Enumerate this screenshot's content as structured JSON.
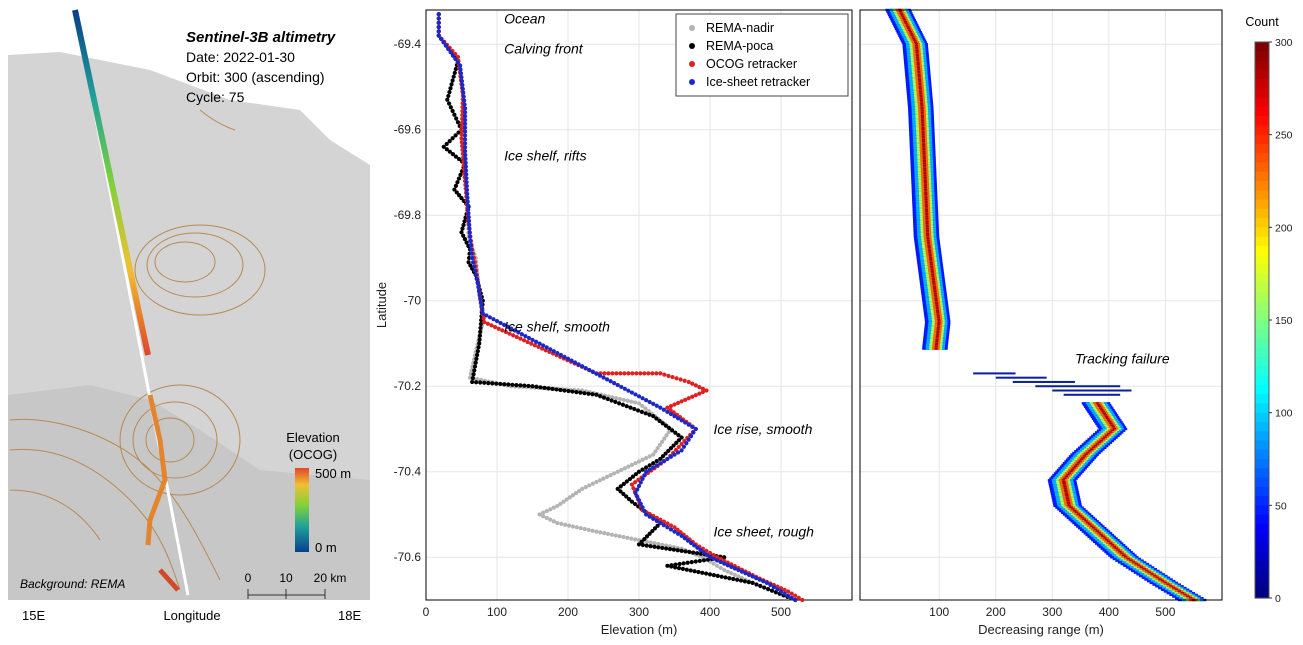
{
  "map": {
    "title": "Sentinel-3B altimetry",
    "info_lines": [
      "Date: 2022-01-30",
      "Orbit: 300 (ascending)",
      "Cycle: 75"
    ],
    "legend_title_1": "Elevation",
    "legend_title_2": "(OCOG)",
    "legend_max": "500 m",
    "legend_min": "0 m",
    "background_note": "Background: REMA",
    "scale_ticks": [
      "0",
      "10",
      "20 km"
    ],
    "x_ticks": [
      "15E",
      "18E"
    ],
    "x_label": "Longitude",
    "colors": {
      "low": "#0a3f8c",
      "mid": "#7fd13b",
      "high": "#e0462b",
      "ocean": "#ffffff",
      "ice": "#d9d9d9"
    }
  },
  "chart_data": [
    {
      "type": "scatter",
      "xlabel": "Elevation (m)",
      "ylabel": "Latitude",
      "xlim": [
        0,
        600
      ],
      "ylim": [
        -70.7,
        -69.32
      ],
      "x_ticks": [
        0,
        100,
        200,
        300,
        400,
        500
      ],
      "y_ticks": [
        -69.4,
        -69.6,
        -69.8,
        -70,
        -70.2,
        -70.4,
        -70.6
      ],
      "grid": true,
      "legend_position": "top-right",
      "series": [
        {
          "name": "REMA-nadir",
          "color": "#b4b4b4",
          "points": [
            [
              18,
              -69.33
            ],
            [
              18,
              -69.38
            ],
            [
              48,
              -69.45
            ],
            [
              55,
              -69.55
            ],
            [
              55,
              -69.65
            ],
            [
              58,
              -69.75
            ],
            [
              60,
              -69.85
            ],
            [
              70,
              -69.9
            ],
            [
              75,
              -69.98
            ],
            [
              80,
              -70.05
            ],
            [
              70,
              -70.12
            ],
            [
              62,
              -70.18
            ],
            [
              120,
              -70.2
            ],
            [
              220,
              -70.21
            ],
            [
              300,
              -70.24
            ],
            [
              345,
              -70.3
            ],
            [
              320,
              -70.36
            ],
            [
              270,
              -70.4
            ],
            [
              220,
              -70.44
            ],
            [
              185,
              -70.48
            ],
            [
              160,
              -70.5
            ],
            [
              185,
              -70.52
            ],
            [
              240,
              -70.54
            ],
            [
              300,
              -70.56
            ],
            [
              360,
              -70.58
            ],
            [
              390,
              -70.6
            ],
            [
              420,
              -70.63
            ],
            [
              460,
              -70.66
            ],
            [
              520,
              -70.7
            ]
          ]
        },
        {
          "name": "REMA-poca",
          "color": "#000000",
          "points": [
            [
              18,
              -69.33
            ],
            [
              18,
              -69.38
            ],
            [
              45,
              -69.44
            ],
            [
              30,
              -69.53
            ],
            [
              50,
              -69.6
            ],
            [
              25,
              -69.64
            ],
            [
              55,
              -69.68
            ],
            [
              40,
              -69.74
            ],
            [
              60,
              -69.78
            ],
            [
              50,
              -69.84
            ],
            [
              62,
              -69.88
            ],
            [
              60,
              -69.91
            ],
            [
              70,
              -69.94
            ],
            [
              80,
              -70.0
            ],
            [
              75,
              -70.1
            ],
            [
              65,
              -70.19
            ],
            [
              150,
              -70.2
            ],
            [
              240,
              -70.22
            ],
            [
              320,
              -70.27
            ],
            [
              360,
              -70.32
            ],
            [
              330,
              -70.37
            ],
            [
              300,
              -70.4
            ],
            [
              270,
              -70.44
            ],
            [
              290,
              -70.47
            ],
            [
              330,
              -70.52
            ],
            [
              300,
              -70.57
            ],
            [
              420,
              -70.6
            ],
            [
              340,
              -70.62
            ],
            [
              460,
              -70.66
            ],
            [
              520,
              -70.7
            ]
          ]
        },
        {
          "name": "OCOG retracker",
          "color": "#e02020",
          "points": [
            [
              18,
              -69.33
            ],
            [
              18,
              -69.38
            ],
            [
              45,
              -69.43
            ],
            [
              52,
              -69.52
            ],
            [
              50,
              -69.62
            ],
            [
              55,
              -69.72
            ],
            [
              60,
              -69.82
            ],
            [
              65,
              -69.88
            ],
            [
              70,
              -69.92
            ],
            [
              75,
              -69.98
            ],
            [
              82,
              -70.05
            ],
            [
              240,
              -70.17
            ],
            [
              330,
              -70.17
            ],
            [
              370,
              -70.19
            ],
            [
              395,
              -70.21
            ],
            [
              340,
              -70.25
            ],
            [
              380,
              -70.3
            ],
            [
              340,
              -70.37
            ],
            [
              290,
              -70.43
            ],
            [
              305,
              -70.49
            ],
            [
              350,
              -70.53
            ],
            [
              380,
              -70.57
            ],
            [
              410,
              -70.6
            ],
            [
              470,
              -70.65
            ],
            [
              510,
              -70.68
            ],
            [
              530,
              -70.7
            ]
          ]
        },
        {
          "name": "Ice-sheet retracker",
          "color": "#1a28c8",
          "points": [
            [
              18,
              -69.33
            ],
            [
              18,
              -69.38
            ],
            [
              48,
              -69.45
            ],
            [
              55,
              -69.55
            ],
            [
              55,
              -69.65
            ],
            [
              58,
              -69.75
            ],
            [
              62,
              -69.85
            ],
            [
              65,
              -69.9
            ],
            [
              72,
              -69.95
            ],
            [
              80,
              -70.03
            ],
            [
              330,
              -70.25
            ],
            [
              380,
              -70.3
            ],
            [
              360,
              -70.35
            ],
            [
              310,
              -70.4
            ],
            [
              295,
              -70.45
            ],
            [
              310,
              -70.5
            ],
            [
              360,
              -70.55
            ],
            [
              400,
              -70.6
            ],
            [
              480,
              -70.66
            ],
            [
              520,
              -70.7
            ]
          ]
        }
      ],
      "annotations": [
        {
          "text": "Ocean",
          "x": 110,
          "y": -69.34
        },
        {
          "text": "Calving front",
          "x": 110,
          "y": -69.41
        },
        {
          "text": "Ice shelf, rifts",
          "x": 110,
          "y": -69.66
        },
        {
          "text": "Ice shelf, smooth",
          "x": 110,
          "y": -70.06
        },
        {
          "text": "Ice rise, smooth",
          "x": 405,
          "y": -70.3
        },
        {
          "text": "Ice sheet, rough",
          "x": 405,
          "y": -70.54
        }
      ]
    },
    {
      "type": "heatmap",
      "xlabel": "Decreasing range (m)",
      "xlim": [
        -40,
        600
      ],
      "ylim": [
        -70.7,
        -69.32
      ],
      "x_ticks": [
        100,
        200,
        300,
        400,
        500
      ],
      "colorbar_title": "Count",
      "colorbar_ticks": [
        0,
        50,
        100,
        150,
        200,
        250,
        300
      ],
      "colorbar_range": [
        0,
        300
      ],
      "grid": true,
      "annotations": [
        {
          "text": "Tracking failure",
          "x": 340,
          "y": -70.17
        }
      ],
      "segments": [
        {
          "name": "upper-waveforms",
          "lat_top": -69.32,
          "lat_bottom": -70.11,
          "center": [
            [
              30,
              -69.32
            ],
            [
              60,
              -69.4
            ],
            [
              70,
              -69.55
            ],
            [
              75,
              -69.7
            ],
            [
              80,
              -69.85
            ],
            [
              90,
              -69.95
            ],
            [
              100,
              -70.05
            ],
            [
              95,
              -70.11
            ]
          ],
          "half_width": 25
        },
        {
          "name": "lower-waveforms",
          "lat_top": -70.24,
          "lat_bottom": -70.7,
          "center": [
            [
              380,
              -70.24
            ],
            [
              410,
              -70.3
            ],
            [
              360,
              -70.36
            ],
            [
              320,
              -70.42
            ],
            [
              330,
              -70.48
            ],
            [
              380,
              -70.54
            ],
            [
              430,
              -70.6
            ],
            [
              500,
              -70.66
            ],
            [
              550,
              -70.7
            ]
          ],
          "half_width": 28
        }
      ],
      "failure_streaks": [
        {
          "lat": -70.17,
          "x0": 160,
          "x1": 235
        },
        {
          "lat": -70.18,
          "x0": 200,
          "x1": 290
        },
        {
          "lat": -70.19,
          "x0": 230,
          "x1": 340
        },
        {
          "lat": -70.2,
          "x0": 270,
          "x1": 420
        },
        {
          "lat": -70.21,
          "x0": 300,
          "x1": 440
        },
        {
          "lat": -70.22,
          "x0": 320,
          "x1": 420
        }
      ]
    }
  ]
}
